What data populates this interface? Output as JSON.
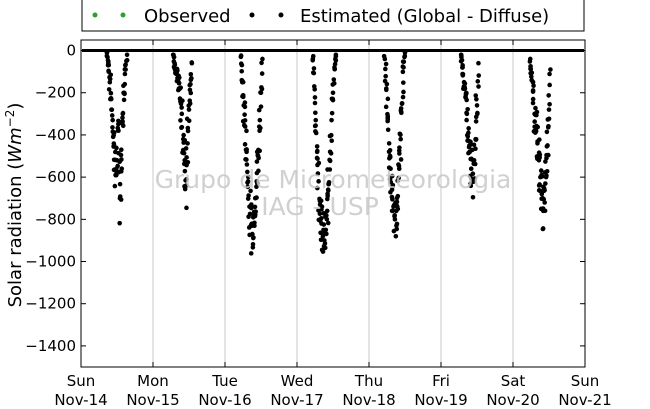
{
  "chart_data": {
    "type": "scatter",
    "ylabel_prefix": "Solar radiation (",
    "ylabel_unit_base": "Wm",
    "ylabel_unit_exp": "−2",
    "ylabel_suffix": ")",
    "ylim": [
      -1500,
      50
    ],
    "yticks": [
      0,
      -200,
      -400,
      -600,
      -800,
      -1000,
      -1200,
      -1400
    ],
    "xlim": [
      0,
      7
    ],
    "xticks": [
      {
        "day": "Sun",
        "date": "Nov-14"
      },
      {
        "day": "Mon",
        "date": "Nov-15"
      },
      {
        "day": "Tue",
        "date": "Nov-16"
      },
      {
        "day": "Wed",
        "date": "Nov-17"
      },
      {
        "day": "Thu",
        "date": "Nov-18"
      },
      {
        "day": "Fri",
        "date": "Nov-19"
      },
      {
        "day": "Sat",
        "date": "Nov-20"
      },
      {
        "day": "Sun",
        "date": "Nov-21"
      }
    ],
    "grid": "vertical",
    "legend_position": "top-outside",
    "series": [
      {
        "name": "Observed",
        "color": "#2ca02c",
        "marker": "dot",
        "points": []
      },
      {
        "name": "Estimated (Global - Diffuse)",
        "color": "#000000",
        "marker": "dot",
        "baseline_value": 0,
        "daily_profiles": [
          {
            "x": [
              0.36,
              0.38,
              0.4,
              0.42,
              0.44,
              0.46,
              0.48,
              0.5,
              0.52,
              0.54,
              0.56,
              0.58,
              0.6,
              0.62,
              0.64
            ],
            "y": [
              -10,
              -60,
              -150,
              -230,
              -330,
              -450,
              -590,
              -520,
              -380,
              -700,
              -470,
              -300,
              -200,
              -90,
              -20
            ]
          },
          {
            "x": [
              1.28,
              1.3,
              1.32,
              1.34,
              1.36,
              1.38,
              1.4,
              1.42,
              1.44,
              1.46,
              1.48,
              1.5,
              1.52,
              1.54
            ],
            "y": [
              -20,
              -60,
              -110,
              -130,
              -180,
              -240,
              -300,
              -420,
              -520,
              -640,
              -440,
              -280,
              -160,
              -60
            ]
          },
          {
            "x": [
              2.22,
              2.24,
              2.26,
              2.28,
              2.3,
              2.32,
              2.34,
              2.36,
              2.38,
              2.4,
              2.42,
              2.44,
              2.46,
              2.48,
              2.5,
              2.52
            ],
            "y": [
              -30,
              -150,
              -260,
              -360,
              -480,
              -620,
              -740,
              -830,
              -870,
              -780,
              -700,
              -620,
              -500,
              -380,
              -200,
              -40
            ]
          },
          {
            "x": [
              3.22,
              3.24,
              3.26,
              3.28,
              3.3,
              3.32,
              3.34,
              3.36,
              3.38,
              3.4,
              3.42,
              3.44,
              3.46,
              3.48,
              3.5,
              3.52,
              3.54
            ],
            "y": [
              -40,
              -170,
              -330,
              -480,
              -620,
              -730,
              -820,
              -880,
              -900,
              -850,
              -760,
              -630,
              -480,
              -330,
              -200,
              -80,
              -20
            ]
          },
          {
            "x": [
              4.22,
              4.24,
              4.26,
              4.28,
              4.3,
              4.32,
              4.34,
              4.36,
              4.38,
              4.4,
              4.42,
              4.44,
              4.46,
              4.48,
              4.5
            ],
            "y": [
              -40,
              -180,
              -320,
              -440,
              -560,
              -660,
              -740,
              -800,
              -760,
              -690,
              -560,
              -420,
              -250,
              -80,
              -10
            ]
          },
          {
            "x": [
              5.28,
              5.3,
              5.32,
              5.34,
              5.36,
              5.38,
              5.4,
              5.42,
              5.44,
              5.46,
              5.48,
              5.5,
              5.52
            ],
            "y": [
              -20,
              -80,
              -150,
              -220,
              -300,
              -390,
              -480,
              -560,
              -610,
              -520,
              -420,
              -260,
              -60
            ]
          },
          {
            "x": [
              6.24,
              6.26,
              6.28,
              6.3,
              6.32,
              6.34,
              6.36,
              6.38,
              6.4,
              6.42,
              6.44,
              6.46,
              6.48,
              6.5,
              6.52
            ],
            "y": [
              -40,
              -140,
              -230,
              -300,
              -380,
              -440,
              -520,
              -600,
              -680,
              -760,
              -720,
              -600,
              -450,
              -280,
              -90
            ]
          }
        ]
      }
    ]
  },
  "watermark": {
    "line1": "Grupo de Micrometeorologia",
    "line2": "IAG - USP"
  }
}
